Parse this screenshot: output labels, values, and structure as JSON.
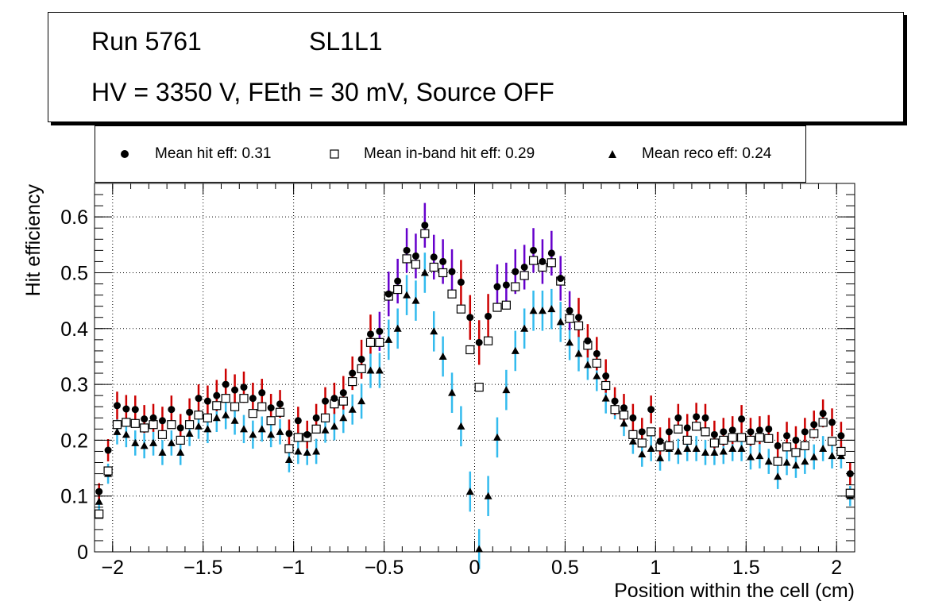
{
  "title": {
    "run": "Run 5761",
    "layer": "SL1L1",
    "conditions": "HV = 3350 V, FEth = 30 mV, Source OFF"
  },
  "colors": {
    "hit_err": "#cc0000",
    "hit_err_alt": "#6600cc",
    "reco_err": "#33bbee",
    "marker": "#000000"
  },
  "chart_data": {
    "type": "scatter",
    "xlabel": "Position within the cell (cm)",
    "ylabel": "Hit efficiency",
    "xlim": [
      -2.1,
      2.1
    ],
    "ylim": [
      0,
      0.66
    ],
    "grid": true,
    "x_ticks": [
      -2,
      -1.5,
      -1,
      -0.5,
      0,
      0.5,
      1,
      1.5,
      2
    ],
    "x_tick_labels": [
      "−2",
      "−1.5",
      "−1",
      "−0.5",
      "0",
      "0.5",
      "1",
      "1.5",
      "2"
    ],
    "y_ticks": [
      0,
      0.1,
      0.2,
      0.3,
      0.4,
      0.5,
      0.6
    ],
    "y_tick_labels": [
      "0",
      "0.1",
      "0.2",
      "0.3",
      "0.4",
      "0.5",
      "0.6"
    ],
    "legend": [
      {
        "marker": "circle",
        "label": "Mean hit  eff: 0.31"
      },
      {
        "marker": "open-square",
        "label": "Mean in-band hit eff: 0.29"
      },
      {
        "marker": "triangle",
        "label": "Mean reco eff: 0.24"
      }
    ],
    "x": [
      -2.075,
      -2.025,
      -1.975,
      -1.925,
      -1.875,
      -1.825,
      -1.775,
      -1.725,
      -1.675,
      -1.625,
      -1.575,
      -1.525,
      -1.475,
      -1.425,
      -1.375,
      -1.325,
      -1.275,
      -1.225,
      -1.175,
      -1.125,
      -1.075,
      -1.025,
      -0.975,
      -0.925,
      -0.875,
      -0.825,
      -0.775,
      -0.725,
      -0.675,
      -0.625,
      -0.575,
      -0.525,
      -0.475,
      -0.425,
      -0.375,
      -0.325,
      -0.275,
      -0.225,
      -0.175,
      -0.125,
      -0.075,
      -0.025,
      0.025,
      0.075,
      0.125,
      0.175,
      0.225,
      0.275,
      0.325,
      0.375,
      0.425,
      0.475,
      0.525,
      0.575,
      0.625,
      0.675,
      0.725,
      0.775,
      0.825,
      0.875,
      0.925,
      0.975,
      1.025,
      1.075,
      1.125,
      1.175,
      1.225,
      1.275,
      1.325,
      1.375,
      1.425,
      1.475,
      1.525,
      1.575,
      1.625,
      1.675,
      1.725,
      1.775,
      1.825,
      1.875,
      1.925,
      1.975,
      2.025,
      2.075
    ],
    "series": [
      {
        "name": "Mean hit  eff: 0.31",
        "marker": "circle",
        "values": [
          0.108,
          0.182,
          0.262,
          0.256,
          0.255,
          0.238,
          0.24,
          0.235,
          0.255,
          0.222,
          0.25,
          0.275,
          0.27,
          0.28,
          0.3,
          0.29,
          0.295,
          0.275,
          0.285,
          0.258,
          0.265,
          0.212,
          0.235,
          0.21,
          0.24,
          0.27,
          0.275,
          0.285,
          0.32,
          0.345,
          0.39,
          0.395,
          0.462,
          0.485,
          0.54,
          0.53,
          0.585,
          0.528,
          0.52,
          0.502,
          0.483,
          0.42,
          0.375,
          0.422,
          0.475,
          0.478,
          0.502,
          0.51,
          0.54,
          0.52,
          0.535,
          0.49,
          0.432,
          0.42,
          0.378,
          0.355,
          0.315,
          0.27,
          0.258,
          0.24,
          0.215,
          0.255,
          0.198,
          0.215,
          0.24,
          0.222,
          0.242,
          0.24,
          0.21,
          0.215,
          0.218,
          0.238,
          0.215,
          0.218,
          0.22,
          0.19,
          0.208,
          0.2,
          0.215,
          0.228,
          0.248,
          0.232,
          0.208,
          0.14
        ],
        "err": [
          0.015,
          0.02,
          0.025,
          0.025,
          0.025,
          0.025,
          0.025,
          0.025,
          0.025,
          0.025,
          0.025,
          0.025,
          0.028,
          0.028,
          0.028,
          0.028,
          0.028,
          0.028,
          0.025,
          0.025,
          0.025,
          0.025,
          0.025,
          0.025,
          0.025,
          0.025,
          0.028,
          0.03,
          0.03,
          0.035,
          0.035,
          0.035,
          0.04,
          0.04,
          0.04,
          0.04,
          0.04,
          0.04,
          0.04,
          0.04,
          0.04,
          0.04,
          0.04,
          0.04,
          0.04,
          0.04,
          0.04,
          0.04,
          0.04,
          0.04,
          0.04,
          0.04,
          0.035,
          0.035,
          0.03,
          0.03,
          0.03,
          0.025,
          0.025,
          0.025,
          0.025,
          0.025,
          0.025,
          0.025,
          0.025,
          0.025,
          0.025,
          0.025,
          0.025,
          0.025,
          0.025,
          0.025,
          0.025,
          0.025,
          0.025,
          0.025,
          0.025,
          0.025,
          0.025,
          0.025,
          0.025,
          0.025,
          0.025,
          0.02
        ]
      },
      {
        "name": "Mean in-band hit eff: 0.29",
        "marker": "open-square",
        "values": [
          0.068,
          0.145,
          0.228,
          0.232,
          0.23,
          0.222,
          0.228,
          0.21,
          0.228,
          0.2,
          0.228,
          0.245,
          0.24,
          0.262,
          0.275,
          0.26,
          0.275,
          0.248,
          0.26,
          0.235,
          0.25,
          0.185,
          0.205,
          0.205,
          0.22,
          0.24,
          0.265,
          0.27,
          0.305,
          0.328,
          0.375,
          0.375,
          0.458,
          0.47,
          0.525,
          0.515,
          0.57,
          0.51,
          0.5,
          0.462,
          0.435,
          0.362,
          0.295,
          0.378,
          0.438,
          0.442,
          0.475,
          0.495,
          0.522,
          0.51,
          0.518,
          0.485,
          0.418,
          0.405,
          0.37,
          0.338,
          0.298,
          0.255,
          0.245,
          0.21,
          0.195,
          0.215,
          0.188,
          0.19,
          0.22,
          0.2,
          0.225,
          0.215,
          0.195,
          0.2,
          0.205,
          0.205,
          0.2,
          0.205,
          0.203,
          0.162,
          0.188,
          0.178,
          0.19,
          0.212,
          0.232,
          0.198,
          0.18,
          0.105
        ]
      },
      {
        "name": "Mean reco eff: 0.24",
        "marker": "triangle",
        "values": [
          0.09,
          0.14,
          0.215,
          0.21,
          0.195,
          0.19,
          0.195,
          0.178,
          0.195,
          0.178,
          0.212,
          0.225,
          0.22,
          0.24,
          0.245,
          0.235,
          0.22,
          0.21,
          0.22,
          0.21,
          0.215,
          0.165,
          0.18,
          0.178,
          0.18,
          0.218,
          0.225,
          0.24,
          0.255,
          0.27,
          0.325,
          0.325,
          0.38,
          0.4,
          0.46,
          0.45,
          0.5,
          0.395,
          0.35,
          0.285,
          0.225,
          0.108,
          0.005,
          0.1,
          0.205,
          0.29,
          0.36,
          0.4,
          0.432,
          0.432,
          0.435,
          0.412,
          0.375,
          0.355,
          0.335,
          0.315,
          0.275,
          0.26,
          0.23,
          0.198,
          0.175,
          0.185,
          0.168,
          0.185,
          0.18,
          0.185,
          0.185,
          0.178,
          0.178,
          0.18,
          0.185,
          0.185,
          0.17,
          0.172,
          0.162,
          0.135,
          0.16,
          0.155,
          0.162,
          0.17,
          0.185,
          0.172,
          0.172,
          0.1
        ]
      }
    ]
  }
}
